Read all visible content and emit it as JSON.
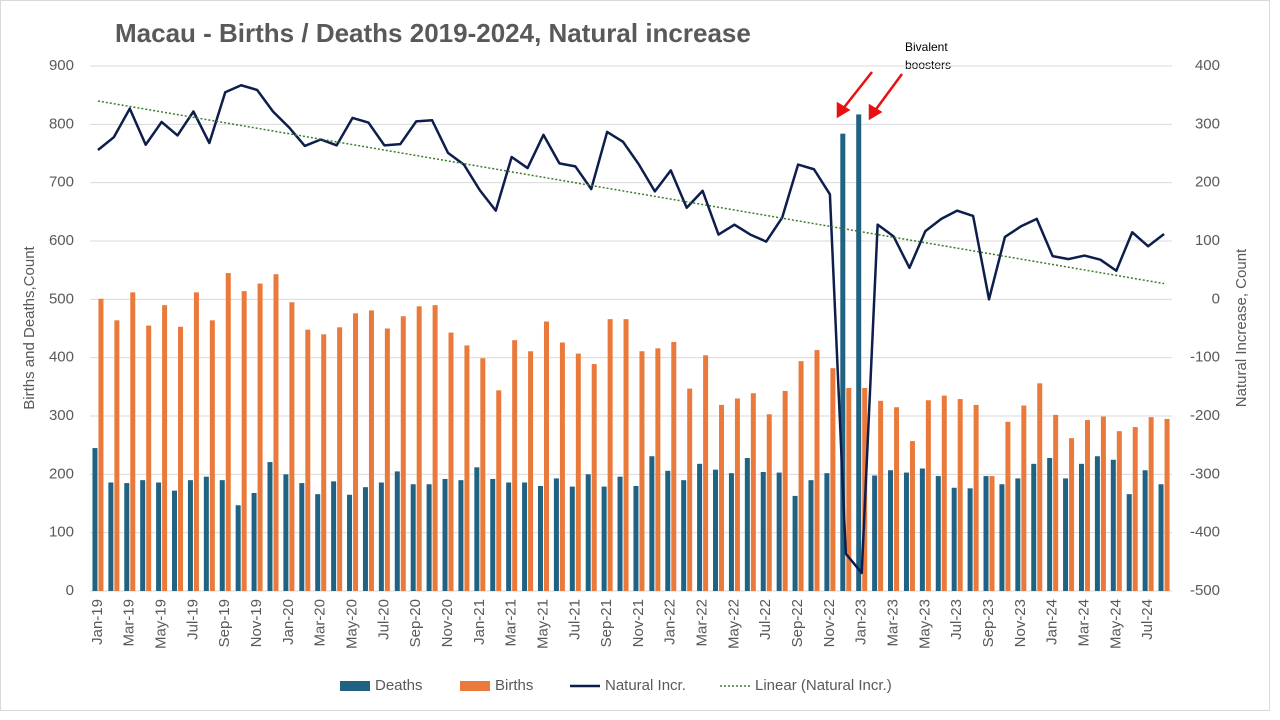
{
  "chart_data": {
    "type": "bar-line",
    "title": "Macau - Births / Deaths 2019-2024, Natural increase",
    "y_label": "Births and Deaths,Count",
    "y2_label": "Natural Increase, Count",
    "annotation": [
      "Bivalent",
      "boosters"
    ],
    "categories": [
      "Jan-19",
      null,
      "Mar-19",
      null,
      "May-19",
      null,
      "Jul-19",
      null,
      "Sep-19",
      null,
      "Nov-19",
      null,
      "Jan-20",
      null,
      "Mar-20",
      null,
      "May-20",
      null,
      "Jul-20",
      null,
      "Sep-20",
      null,
      "Nov-20",
      null,
      "Jan-21",
      null,
      "Mar-21",
      null,
      "May-21",
      null,
      "Jul-21",
      null,
      "Sep-21",
      null,
      "Nov-21",
      null,
      "Jan-22",
      null,
      "Mar-22",
      null,
      "May-22",
      null,
      "Jul-22",
      null,
      "Sep-22",
      null,
      "Nov-22",
      null,
      "Jan-23",
      null,
      "Mar-23",
      null,
      "May-23",
      null,
      "Jul-23",
      null,
      "Sep-23",
      null,
      "Nov-23",
      null,
      "Jan-24",
      null,
      "Mar-24",
      null,
      "May-24",
      null,
      "Jul-24",
      null
    ],
    "series": [
      {
        "name": "Deaths",
        "color": "#1f6282",
        "values": [
          245,
          186,
          185,
          190,
          186,
          172,
          190,
          196,
          190,
          147,
          168,
          221,
          200,
          185,
          166,
          188,
          165,
          178,
          186,
          205,
          183,
          183,
          192,
          190,
          212,
          192,
          186,
          186,
          180,
          193,
          179,
          200,
          179,
          196,
          180,
          231,
          206,
          190,
          218,
          208,
          202,
          228,
          204,
          203,
          163,
          190,
          202,
          784,
          817,
          198,
          207,
          203,
          210,
          197,
          177,
          176,
          197,
          183,
          193,
          218,
          228,
          193,
          218,
          231,
          225,
          166,
          207,
          183
        ]
      },
      {
        "name": "Births",
        "color": "#e97a3b",
        "values": [
          501,
          464,
          512,
          455,
          490,
          453,
          512,
          464,
          545,
          514,
          527,
          543,
          495,
          448,
          440,
          452,
          476,
          481,
          450,
          471,
          488,
          490,
          443,
          421,
          399,
          344,
          430,
          411,
          462,
          426,
          407,
          389,
          466,
          466,
          411,
          416,
          427,
          347,
          404,
          319,
          330,
          339,
          303,
          343,
          394,
          413,
          382,
          348,
          348,
          326,
          315,
          257,
          327,
          335,
          329,
          319,
          197,
          290,
          318,
          356,
          302,
          262,
          293,
          299,
          274,
          281,
          298,
          295
        ]
      },
      {
        "name": "Natural Incr.",
        "color": "#0e1e4c",
        "axis": "y2",
        "values": [
          256,
          278,
          327,
          265,
          304,
          281,
          322,
          268,
          355,
          367,
          359,
          322,
          295,
          263,
          274,
          264,
          311,
          303,
          264,
          266,
          305,
          307,
          251,
          231,
          187,
          152,
          244,
          225,
          282,
          233,
          228,
          189,
          287,
          270,
          231,
          185,
          221,
          157,
          186,
          111,
          128,
          111,
          99,
          140,
          231,
          223,
          180,
          -436,
          -469,
          128,
          108,
          54,
          117,
          138,
          152,
          143,
          0,
          107,
          125,
          138,
          74,
          69,
          75,
          68,
          49,
          115,
          91,
          112
        ]
      }
    ],
    "trend": {
      "name": "Linear (Natural Incr.)",
      "color": "#3b7d2e",
      "axis": "y2",
      "values": [
        340,
        27
      ]
    },
    "ylim": [
      0,
      900
    ],
    "yticks": [
      0,
      100,
      200,
      300,
      400,
      500,
      600,
      700,
      800,
      900
    ],
    "y2lim": [
      -500,
      400
    ],
    "y2ticks": [
      -500,
      -400,
      -300,
      -200,
      -100,
      0,
      100,
      200,
      300,
      400
    ],
    "grid": true,
    "legend": "bottom"
  }
}
